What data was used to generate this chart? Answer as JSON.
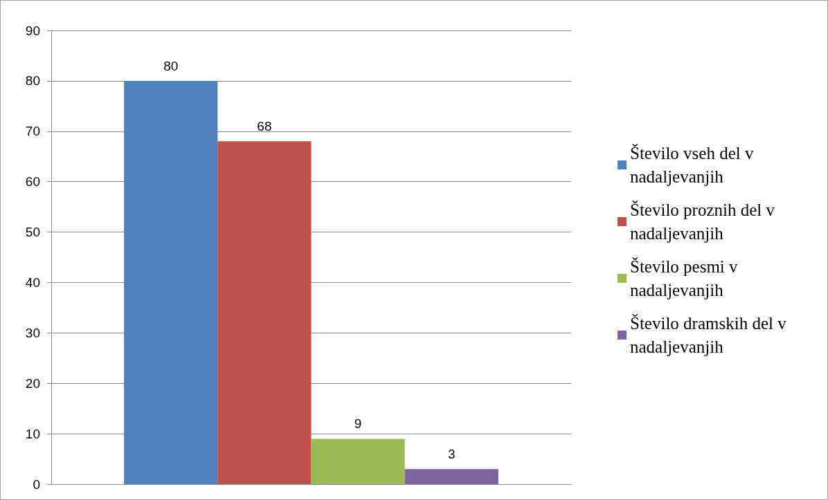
{
  "chart_data": {
    "type": "bar",
    "categories": [
      null
    ],
    "series": [
      {
        "name": "Število vseh del v nadaljevanjih",
        "color": "#4f81bd",
        "values": [
          80
        ]
      },
      {
        "name": "Število proznih del v nadaljevanjih",
        "color": "#c0504d",
        "values": [
          68
        ]
      },
      {
        "name": "Število pesmi v nadaljevanjih",
        "color": "#9bbb59",
        "values": [
          9
        ]
      },
      {
        "name": "Število dramskih del v nadaljevanjih",
        "color": "#8064a2",
        "values": [
          3
        ]
      }
    ],
    "ylim": [
      0,
      90
    ],
    "yticks": [
      0,
      10,
      20,
      30,
      40,
      50,
      60,
      70,
      80,
      90
    ],
    "grid": "y",
    "legend": "right",
    "data_labels": true
  }
}
